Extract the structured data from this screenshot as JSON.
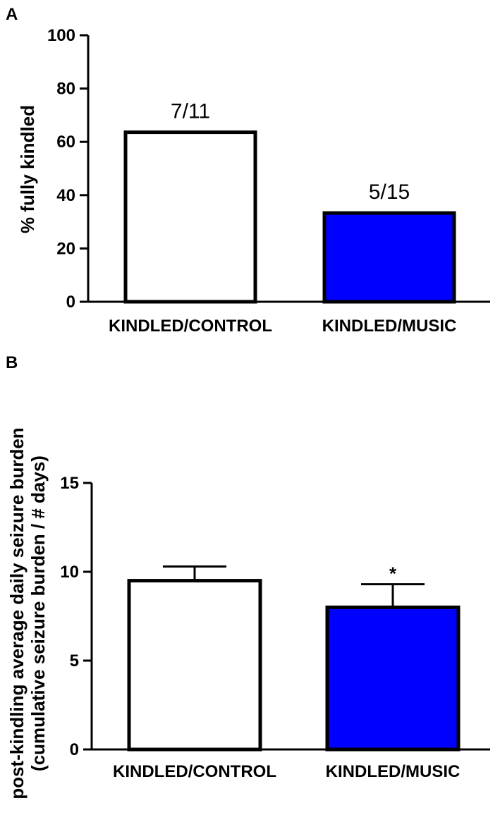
{
  "chart_data": [
    {
      "panel": "A",
      "type": "bar",
      "categories": [
        "KINDLED/CONTROL",
        "KINDLED/MUSIC"
      ],
      "values": [
        63.6,
        33.3
      ],
      "data_labels": [
        "7/11",
        "5/15"
      ],
      "ylabel": "% fully kindled",
      "ylim": [
        0,
        100
      ],
      "yticks": [
        0,
        20,
        40,
        60,
        80,
        100
      ],
      "colors": [
        "#ffffff",
        "#0000ff"
      ]
    },
    {
      "panel": "B",
      "type": "bar",
      "categories": [
        "KINDLED/CONTROL",
        "KINDLED/MUSIC"
      ],
      "values": [
        9.5,
        8.0
      ],
      "errors": [
        0.8,
        1.3
      ],
      "annotations": [
        "",
        "*"
      ],
      "ylabel_lines": [
        "post-kindling average daily seizure burden",
        "(cumulative seizure burden / # days)"
      ],
      "ylim": [
        0,
        15
      ],
      "yticks": [
        0,
        5,
        10,
        15
      ],
      "colors": [
        "#ffffff",
        "#0000ff"
      ]
    }
  ]
}
